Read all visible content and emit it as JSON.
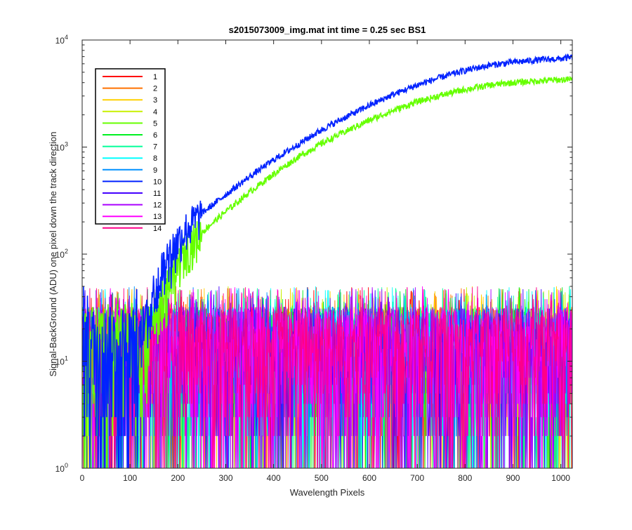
{
  "chart_data": {
    "type": "line",
    "title": "s2015073009_img.mat int time = 0.25 sec   BS1",
    "xlabel": "Wavelength Pixels",
    "ylabel": "Signal-BackGround (ADU) one pixel down the track direction",
    "xlim": [
      0,
      1024
    ],
    "ylim": [
      1,
      10000
    ],
    "yscale": "log",
    "x_ticks": [
      "0",
      "100",
      "200",
      "300",
      "400",
      "500",
      "600",
      "700",
      "800",
      "900",
      "1000"
    ],
    "y_ticks": [
      {
        "base": "10",
        "exp": "0"
      },
      {
        "base": "10",
        "exp": "1"
      },
      {
        "base": "10",
        "exp": "2"
      },
      {
        "base": "10",
        "exp": "3"
      },
      {
        "base": "10",
        "exp": "4"
      }
    ],
    "grid": false,
    "legend_position": "top-left",
    "series": [
      {
        "name": "1",
        "color": "#ff0000",
        "kind": "noise"
      },
      {
        "name": "2",
        "color": "#ff7200",
        "kind": "noise"
      },
      {
        "name": "3",
        "color": "#ffd000",
        "kind": "noise"
      },
      {
        "name": "4",
        "color": "#c8f000",
        "kind": "noise"
      },
      {
        "name": "5",
        "color": "#66ff00",
        "kind": "signal",
        "points": [
          [
            140,
            22
          ],
          [
            160,
            35
          ],
          [
            180,
            55
          ],
          [
            200,
            80
          ],
          [
            220,
            115
          ],
          [
            250,
            160
          ],
          [
            300,
            250
          ],
          [
            350,
            380
          ],
          [
            400,
            560
          ],
          [
            450,
            800
          ],
          [
            500,
            1080
          ],
          [
            550,
            1400
          ],
          [
            600,
            1780
          ],
          [
            650,
            2200
          ],
          [
            700,
            2650
          ],
          [
            750,
            3050
          ],
          [
            800,
            3450
          ],
          [
            850,
            3780
          ],
          [
            900,
            4000
          ],
          [
            950,
            4150
          ],
          [
            1000,
            4250
          ],
          [
            1024,
            4300
          ]
        ]
      },
      {
        "name": "6",
        "color": "#00f020",
        "kind": "noise"
      },
      {
        "name": "7",
        "color": "#00ff99",
        "kind": "noise"
      },
      {
        "name": "8",
        "color": "#00ffff",
        "kind": "noise"
      },
      {
        "name": "9",
        "color": "#0090ff",
        "kind": "noise"
      },
      {
        "name": "10",
        "color": "#0022ff",
        "kind": "signal",
        "points": [
          [
            120,
            18
          ],
          [
            140,
            35
          ],
          [
            160,
            65
          ],
          [
            180,
            100
          ],
          [
            200,
            135
          ],
          [
            220,
            180
          ],
          [
            250,
            240
          ],
          [
            300,
            360
          ],
          [
            350,
            530
          ],
          [
            400,
            760
          ],
          [
            450,
            1050
          ],
          [
            500,
            1450
          ],
          [
            550,
            1900
          ],
          [
            600,
            2450
          ],
          [
            650,
            3100
          ],
          [
            700,
            3800
          ],
          [
            750,
            4500
          ],
          [
            800,
            5200
          ],
          [
            850,
            5800
          ],
          [
            900,
            6200
          ],
          [
            950,
            6500
          ],
          [
            1000,
            6700
          ],
          [
            1024,
            6900
          ]
        ]
      },
      {
        "name": "11",
        "color": "#4400ff",
        "kind": "noise"
      },
      {
        "name": "12",
        "color": "#aa00ff",
        "kind": "noise"
      },
      {
        "name": "13",
        "color": "#ff00ff",
        "kind": "noise"
      },
      {
        "name": "14",
        "color": "#ff0088",
        "kind": "noise"
      }
    ],
    "noise_floor": {
      "typical_range": [
        2,
        35
      ],
      "max_spikes": 50,
      "min": 1
    }
  }
}
